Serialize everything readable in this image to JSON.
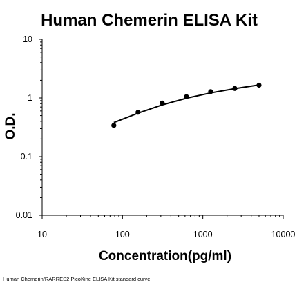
{
  "chart_data": {
    "type": "scatter",
    "title": "Human Chemerin ELISA Kit",
    "xlabel": "Concentration(pg/ml)",
    "ylabel": "O.D.",
    "xscale": "log",
    "yscale": "log",
    "xlim": [
      10,
      10000
    ],
    "ylim": [
      0.01,
      10
    ],
    "xticks": [
      "10",
      "100",
      "1000",
      "10000"
    ],
    "yticks": [
      "0.01",
      "0.1",
      "1",
      "10"
    ],
    "grid": false,
    "legend": "none",
    "series": [
      {
        "points": [
          {
            "x": 78,
            "y": 0.34
          },
          {
            "x": 156,
            "y": 0.57
          },
          {
            "x": 312,
            "y": 0.82
          },
          {
            "x": 625,
            "y": 1.05
          },
          {
            "x": 1250,
            "y": 1.28
          },
          {
            "x": 2500,
            "y": 1.45
          },
          {
            "x": 5000,
            "y": 1.65
          }
        ],
        "fit": [
          {
            "x": 78,
            "y": 0.38
          },
          {
            "x": 156,
            "y": 0.55
          },
          {
            "x": 312,
            "y": 0.76
          },
          {
            "x": 625,
            "y": 0.99
          },
          {
            "x": 1250,
            "y": 1.22
          },
          {
            "x": 2500,
            "y": 1.44
          },
          {
            "x": 5000,
            "y": 1.67
          }
        ],
        "color": "#000000"
      }
    ],
    "caption": "Human Chemerin/RARRES2 PicoKine ELISA Kit standard curve"
  }
}
